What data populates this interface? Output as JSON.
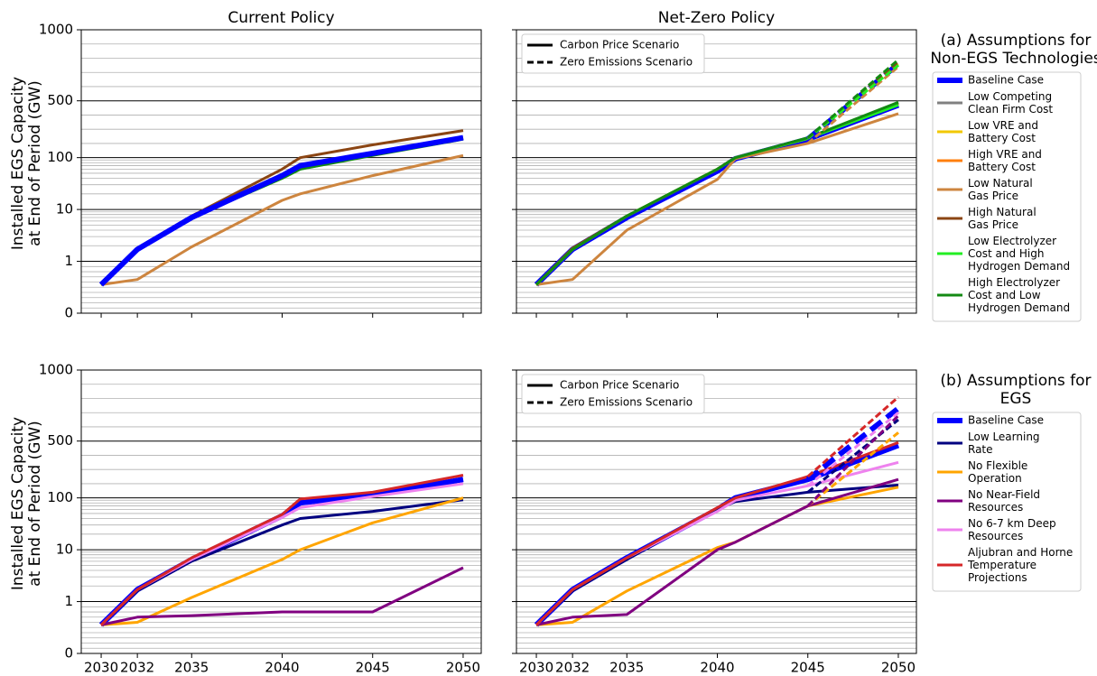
{
  "chart_data": [
    {
      "type": "line",
      "title": "Current Policy",
      "ylabel": "Installed EGS Capacity\nat End of Period (GW)",
      "x": [
        2030,
        2032,
        2035,
        2040,
        2041,
        2045,
        2050
      ],
      "xlim": [
        2028.9,
        2051
      ],
      "xticks": [
        2030,
        2032,
        2035,
        2040,
        2045,
        2050
      ],
      "xticklabels": false,
      "ylim": [
        0,
        1000
      ],
      "yticks": [
        0,
        1,
        10,
        100,
        500,
        1000
      ],
      "minor_yticks": [
        0.1,
        0.2,
        0.3,
        0.4,
        0.5,
        0.6,
        0.7,
        0.8,
        0.9,
        2,
        3,
        4,
        5,
        6,
        7,
        8,
        9,
        20,
        30,
        40,
        50,
        60,
        70,
        80,
        90,
        200,
        300,
        400,
        600,
        700,
        800,
        900
      ],
      "series": [
        {
          "name": "Low Competing\nClean Firm Cost",
          "color": "#808080",
          "values": [
            0.55,
            1.7,
            7,
            42,
            65,
            120,
            235
          ]
        },
        {
          "name": "Low VRE and\nBattery Cost",
          "color": "#f2c800",
          "values": [
            0.55,
            1.7,
            7,
            42,
            65,
            120,
            235
          ]
        },
        {
          "name": "High VRE and\nBattery Cost",
          "color": "#ff7f0e",
          "values": [
            0.55,
            1.7,
            7,
            42,
            65,
            125,
            240
          ]
        },
        {
          "name": "Low Natural\nGas Price",
          "color": "#cd853f",
          "values": [
            0.55,
            0.65,
            1.9,
            15,
            20,
            45,
            115
          ]
        },
        {
          "name": "High Natural\nGas Price",
          "color": "#8b4513",
          "values": [
            0.55,
            1.8,
            7.5,
            60,
            100,
            190,
            290
          ]
        },
        {
          "name": "Low Electrolyzer\nCost and High\nHydrogen Demand",
          "color": "#22ee22",
          "values": [
            0.55,
            1.7,
            7,
            40,
            60,
            120,
            235
          ]
        },
        {
          "name": "High Electrolyzer\nCost and Low\nHydrogen Demand",
          "color": "#138a13",
          "values": [
            0.55,
            1.7,
            7,
            40,
            60,
            115,
            230
          ]
        },
        {
          "name": "Baseline Case",
          "color": "#0000ff",
          "linewidth": 6,
          "values": [
            0.55,
            1.7,
            7,
            45,
            70,
            130,
            240
          ]
        }
      ]
    },
    {
      "type": "line",
      "title": "Net-Zero Policy",
      "legend_title": "(a) Assumptions for\nNon-EGS Technologies",
      "style_legend": [
        {
          "name": "Carbon Price Scenario",
          "dash": false
        },
        {
          "name": "Zero Emissions Scenario",
          "dash": true
        }
      ],
      "x": [
        2030,
        2032,
        2035,
        2040,
        2041,
        2045,
        2050
      ],
      "xlim": [
        2028.9,
        2051
      ],
      "xticks": [
        2030,
        2032,
        2035,
        2040,
        2045,
        2050
      ],
      "xticklabels": false,
      "yticklabels": false,
      "ylim": [
        0,
        1000
      ],
      "yticks": [
        0,
        1,
        10,
        100,
        500,
        1000
      ],
      "minor_yticks": [
        0.1,
        0.2,
        0.3,
        0.4,
        0.5,
        0.6,
        0.7,
        0.8,
        0.9,
        2,
        3,
        4,
        5,
        6,
        7,
        8,
        9,
        20,
        30,
        40,
        50,
        60,
        70,
        80,
        90,
        200,
        300,
        400,
        600,
        700,
        800,
        900
      ],
      "series": [
        {
          "name": "Baseline Case",
          "color": "#0000ff",
          "linewidth": 6,
          "values": [
            0.55,
            1.7,
            7,
            55,
            95,
            230,
            470
          ]
        },
        {
          "name": "Low Competing\nClean Firm Cost",
          "color": "#808080",
          "values": [
            0.55,
            1.7,
            7.5,
            60,
            100,
            235,
            480
          ]
        },
        {
          "name": "Low VRE and\nBattery Cost",
          "color": "#f2c800",
          "values": [
            0.55,
            1.7,
            7.5,
            60,
            100,
            235,
            480
          ]
        },
        {
          "name": "High VRE and\nBattery Cost",
          "color": "#ff7f0e",
          "values": [
            0.55,
            1.7,
            7.5,
            60,
            100,
            235,
            480
          ]
        },
        {
          "name": "Low Natural\nGas Price",
          "color": "#cd853f",
          "values": [
            0.55,
            0.65,
            4,
            38,
            95,
            200,
            410
          ]
        },
        {
          "name": "High Natural\nGas Price",
          "color": "#8b4513",
          "values": [
            0.55,
            1.8,
            7.5,
            60,
            100,
            235,
            480
          ]
        },
        {
          "name": "Low Electrolyzer\nCost and High\nHydrogen Demand",
          "color": "#22ee22",
          "values": [
            0.55,
            1.7,
            7.5,
            60,
            100,
            235,
            470
          ]
        },
        {
          "name": "High Electrolyzer\nCost and Low\nHydrogen Demand",
          "color": "#138a13",
          "values": [
            0.55,
            1.7,
            7.5,
            60,
            100,
            240,
            490
          ]
        },
        {
          "name": "Baseline Case",
          "color": "#0000ff",
          "linewidth": 6,
          "dash": true,
          "values": [
            null,
            null,
            null,
            null,
            null,
            230,
            760
          ]
        },
        {
          "name": "Low Competing\nClean Firm Cost",
          "color": "#808080",
          "dash": true,
          "values": [
            null,
            null,
            null,
            null,
            null,
            235,
            770
          ]
        },
        {
          "name": "Low VRE and\nBattery Cost",
          "color": "#f2c800",
          "dash": true,
          "values": [
            null,
            null,
            null,
            null,
            null,
            235,
            760
          ]
        },
        {
          "name": "High VRE and\nBattery Cost",
          "color": "#ff7f0e",
          "dash": true,
          "values": [
            null,
            null,
            null,
            null,
            null,
            235,
            775
          ]
        },
        {
          "name": "Low Natural\nGas Price",
          "color": "#cd853f",
          "dash": true,
          "values": [
            null,
            null,
            null,
            null,
            null,
            200,
            740
          ]
        },
        {
          "name": "High Natural\nGas Price",
          "color": "#8b4513",
          "dash": true,
          "values": [
            null,
            null,
            null,
            null,
            null,
            235,
            775
          ]
        },
        {
          "name": "Low Electrolyzer\nCost and High\nHydrogen Demand",
          "color": "#22ee22",
          "dash": true,
          "values": [
            null,
            null,
            null,
            null,
            null,
            235,
            750
          ]
        },
        {
          "name": "High Electrolyzer\nCost and Low\nHydrogen Demand",
          "color": "#138a13",
          "dash": true,
          "values": [
            null,
            null,
            null,
            null,
            null,
            240,
            790
          ]
        }
      ]
    },
    {
      "type": "line",
      "ylabel": "Installed EGS Capacity\nat End of Period (GW)",
      "x": [
        2030,
        2032,
        2035,
        2040,
        2041,
        2045,
        2050
      ],
      "xlim": [
        2028.9,
        2051
      ],
      "xticks": [
        2030,
        2032,
        2035,
        2040,
        2045,
        2050
      ],
      "ylim": [
        0,
        1000
      ],
      "yticks": [
        0,
        1,
        10,
        100,
        500,
        1000
      ],
      "minor_yticks": [
        0.1,
        0.2,
        0.3,
        0.4,
        0.5,
        0.6,
        0.7,
        0.8,
        0.9,
        2,
        3,
        4,
        5,
        6,
        7,
        8,
        9,
        20,
        30,
        40,
        50,
        60,
        70,
        80,
        90,
        200,
        300,
        400,
        600,
        700,
        800,
        900
      ],
      "series": [
        {
          "name": "Baseline Case",
          "color": "#0000ff",
          "linewidth": 6,
          "values": [
            0.55,
            1.7,
            6.5,
            45,
            80,
            120,
            230
          ]
        },
        {
          "name": "Low Learning\nRate",
          "color": "#000080",
          "values": [
            0.55,
            1.6,
            6,
            30,
            40,
            55,
            92
          ]
        },
        {
          "name": "No Flexible\nOperation",
          "color": "#ffa500",
          "values": [
            0.55,
            0.6,
            1.2,
            6.5,
            10,
            33,
            100
          ]
        },
        {
          "name": "No Near-Field\nResources",
          "color": "#800080",
          "values": [
            0.55,
            0.7,
            0.73,
            0.8,
            0.8,
            0.8,
            4.5
          ]
        },
        {
          "name": "No 6-7 km Deep\nResources",
          "color": "#ee82ee",
          "values": [
            0.55,
            1.7,
            6.5,
            42,
            65,
            110,
            200
          ]
        },
        {
          "name": "Aljubran and Horne\nTemperature\nProjections",
          "color": "#d62728",
          "values": [
            0.55,
            1.7,
            7,
            48,
            95,
            140,
            260
          ]
        }
      ]
    },
    {
      "type": "line",
      "legend_title": "(b) Assumptions for\nEGS",
      "style_legend": [
        {
          "name": "Carbon Price Scenario",
          "dash": false
        },
        {
          "name": "Zero Emissions Scenario",
          "dash": true
        }
      ],
      "x": [
        2030,
        2032,
        2035,
        2040,
        2041,
        2045,
        2050
      ],
      "xlim": [
        2028.9,
        2051
      ],
      "xticks": [
        2030,
        2032,
        2035,
        2040,
        2045,
        2050
      ],
      "yticklabels": false,
      "ylim": [
        0,
        1000
      ],
      "yticks": [
        0,
        1,
        10,
        100,
        500,
        1000
      ],
      "minor_yticks": [
        0.1,
        0.2,
        0.3,
        0.4,
        0.5,
        0.6,
        0.7,
        0.8,
        0.9,
        2,
        3,
        4,
        5,
        6,
        7,
        8,
        9,
        20,
        30,
        40,
        50,
        60,
        70,
        80,
        90,
        200,
        300,
        400,
        600,
        700,
        800,
        900
      ],
      "series": [
        {
          "name": "Baseline Case",
          "color": "#0000ff",
          "linewidth": 6,
          "values": [
            0.55,
            1.7,
            7,
            60,
            100,
            230,
            470
          ]
        },
        {
          "name": "Low Learning\nRate",
          "color": "#000080",
          "values": [
            0.55,
            1.6,
            6.5,
            60,
            85,
            140,
            190
          ]
        },
        {
          "name": "No Flexible\nOperation",
          "color": "#ffa500",
          "values": [
            0.55,
            0.6,
            1.6,
            11,
            14,
            70,
            175
          ]
        },
        {
          "name": "No Near-Field\nResources",
          "color": "#800080",
          "values": [
            0.55,
            0.7,
            0.75,
            10,
            14,
            70,
            230
          ]
        },
        {
          "name": "No 6-7 km Deep\nResources",
          "color": "#ee82ee",
          "values": [
            0.55,
            1.7,
            7,
            55,
            90,
            185,
            350
          ]
        },
        {
          "name": "Aljubran and Horne\nTemperature\nProjections",
          "color": "#d62728",
          "values": [
            0.55,
            1.7,
            7,
            65,
            100,
            250,
            490
          ]
        },
        {
          "name": "Baseline Case",
          "color": "#0000ff",
          "linewidth": 6,
          "dash": true,
          "values": [
            null,
            null,
            null,
            null,
            null,
            230,
            730
          ]
        },
        {
          "name": "Low Learning\nRate",
          "color": "#000080",
          "dash": true,
          "values": [
            null,
            null,
            null,
            null,
            null,
            140,
            650
          ]
        },
        {
          "name": "No Flexible\nOperation",
          "color": "#ffa500",
          "dash": true,
          "values": [
            null,
            null,
            null,
            null,
            null,
            70,
            560
          ]
        },
        {
          "name": "No Near-Field\nResources",
          "color": "#800080",
          "dash": true,
          "values": [
            null,
            null,
            null,
            null,
            null,
            70,
            680
          ]
        },
        {
          "name": "No 6-7 km Deep\nResources",
          "color": "#ee82ee",
          "dash": true,
          "values": [
            null,
            null,
            null,
            null,
            null,
            185,
            700
          ]
        },
        {
          "name": "Aljubran and Horne\nTemperature\nProjections",
          "color": "#d62728",
          "dash": true,
          "values": [
            null,
            null,
            null,
            null,
            null,
            250,
            810
          ]
        }
      ]
    }
  ]
}
